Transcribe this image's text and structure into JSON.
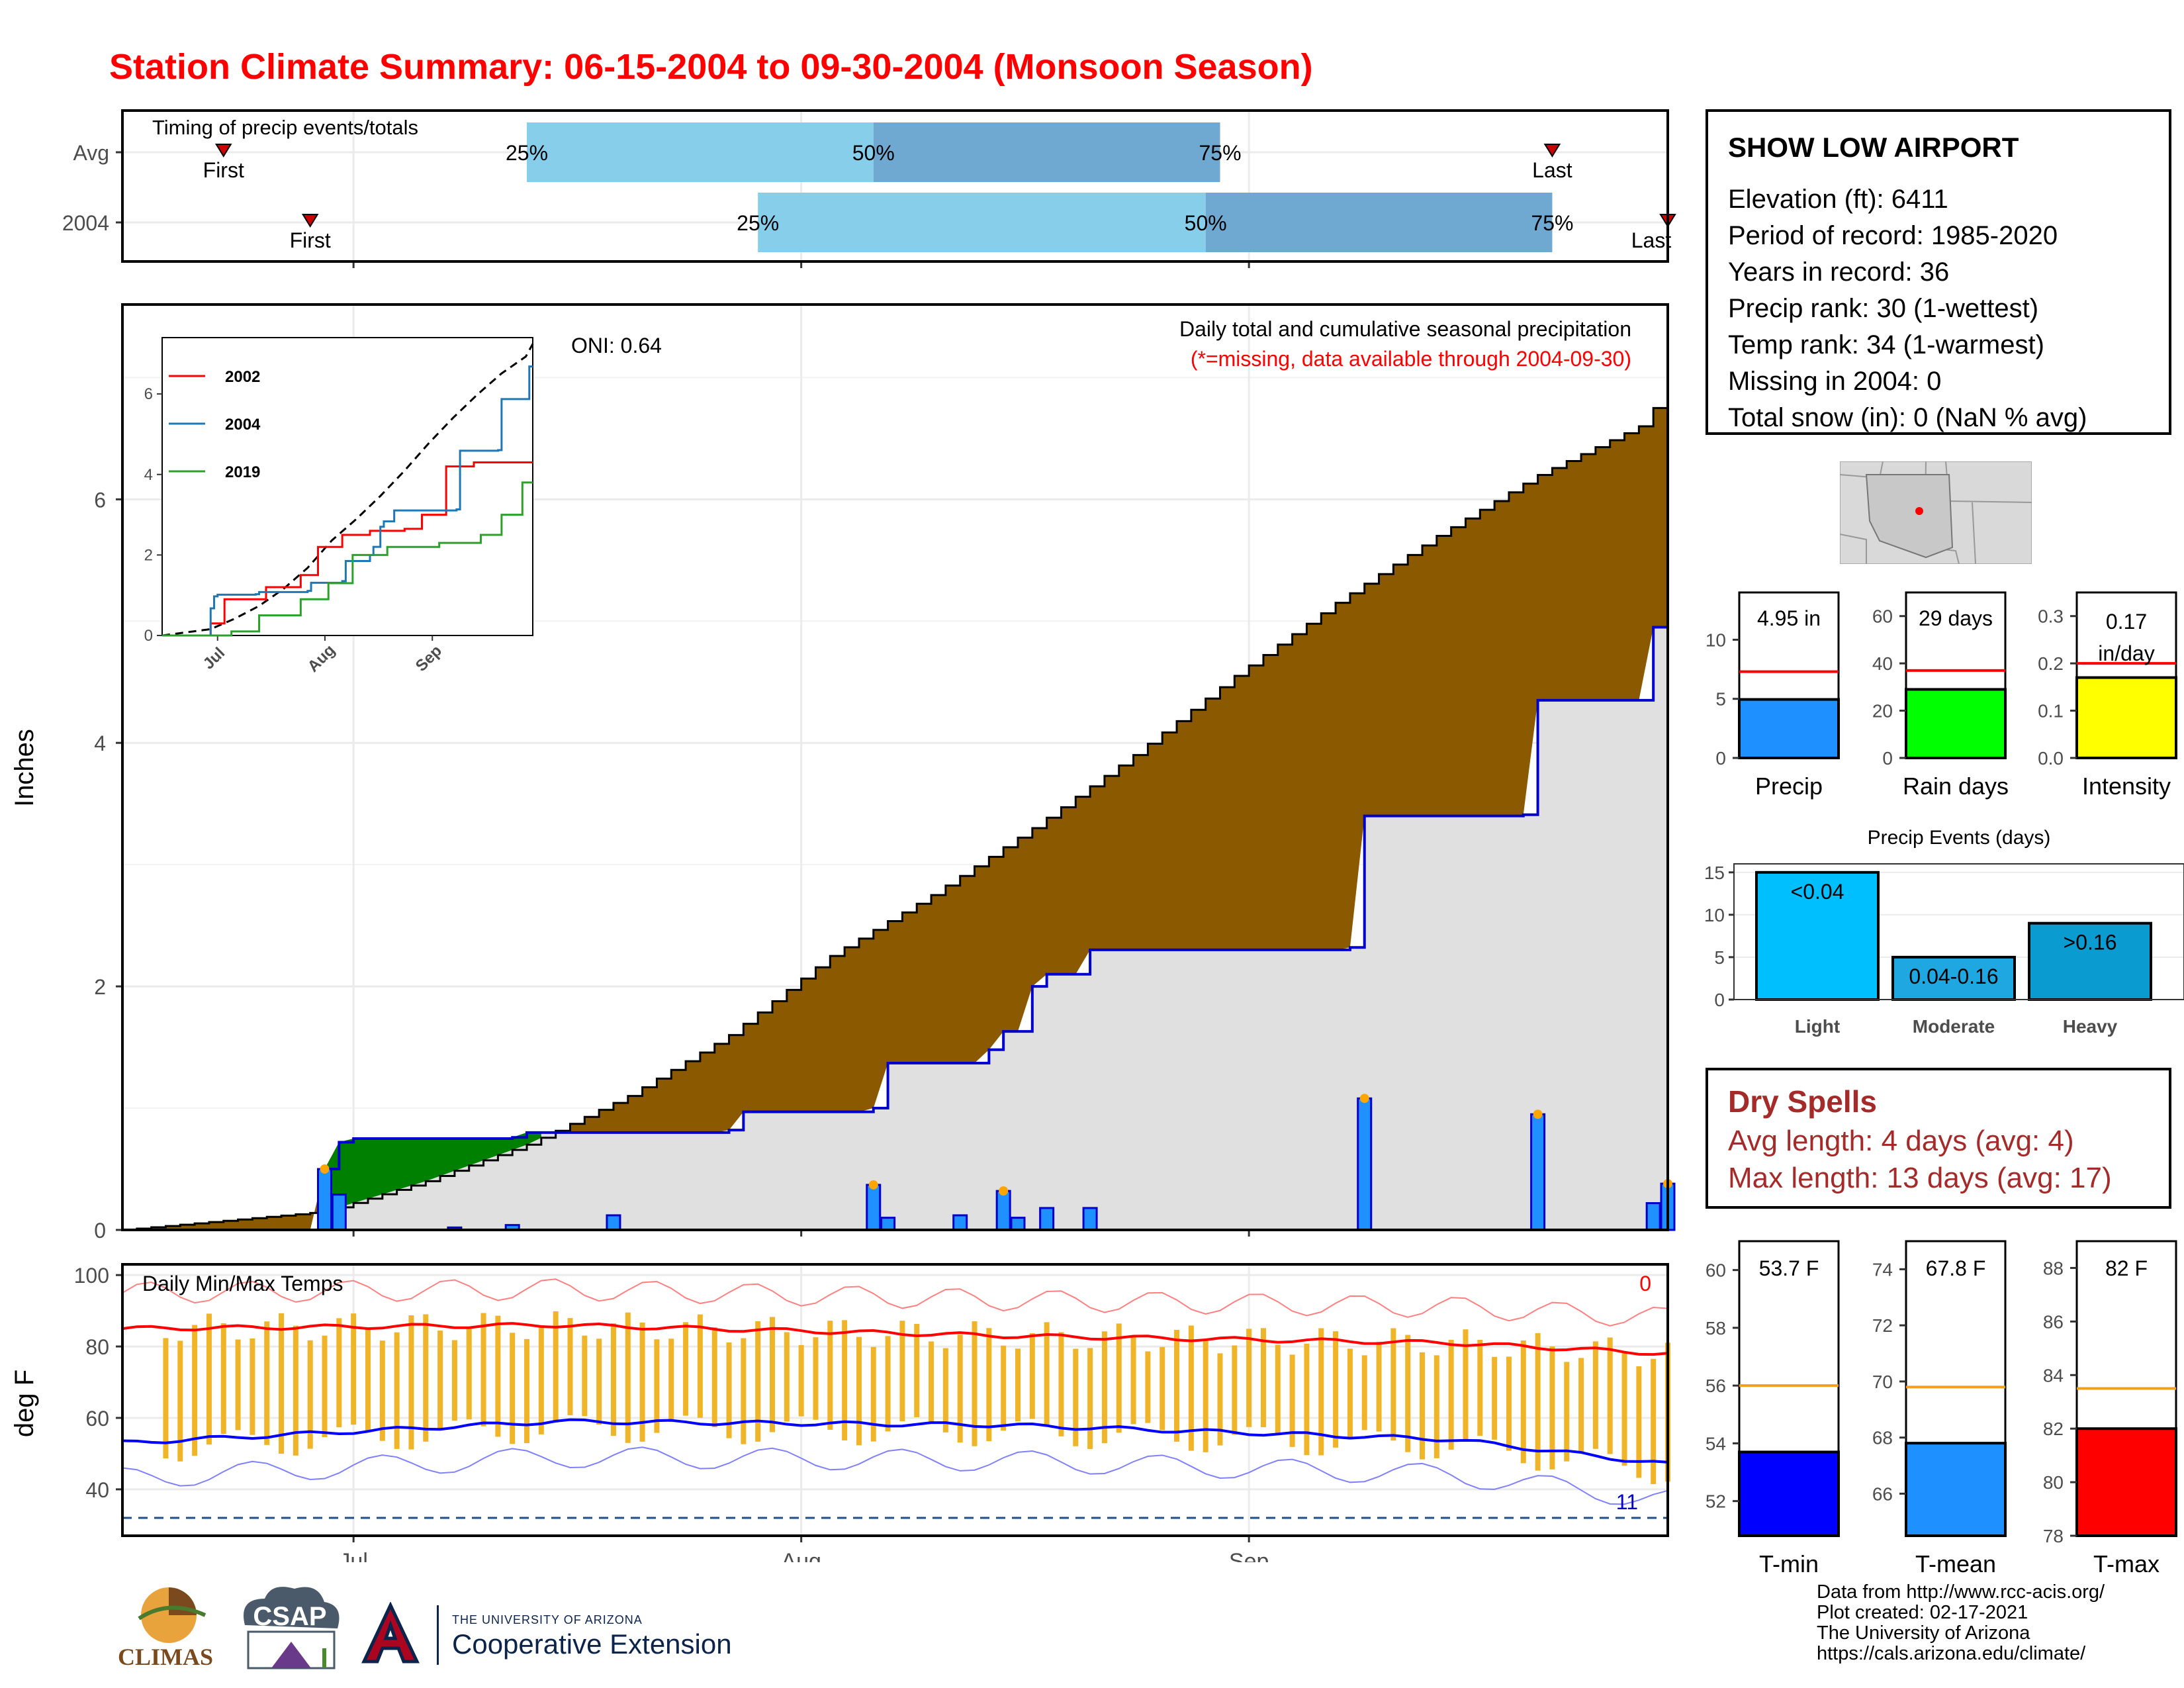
{
  "header": {
    "title": "Station Climate Summary: 06-15-2004 to 09-30-2004 (Monsoon Season)"
  },
  "colors": {
    "title": "#ff0000",
    "cumulative_fill": "#8b5a00",
    "deficit_fill": "#008000",
    "current_line": "#0000cd",
    "daily_bar": "#1e90ff",
    "temp_range_bar": "#f0b429",
    "avg_max": "#ff0000",
    "avg_min": "#0000ff"
  },
  "timing": {
    "label": "Timing of precip events/totals",
    "rows": [
      "Avg",
      "2004"
    ],
    "avg": {
      "first_label": "First",
      "last_label": "Last",
      "q25": "25%",
      "q50": "50%",
      "q75": "75%"
    },
    "y2004": {
      "first_label": "First",
      "last_label": "Last",
      "q25": "25%",
      "q50": "50%",
      "q75": "75%"
    }
  },
  "station": {
    "name": "SHOW LOW AIRPORT",
    "lines": [
      "Elevation (ft): 6411",
      "Period of record: 1985-2020",
      "Years in record: 36",
      "Precip rank: 30 (1-wettest)",
      "Temp rank: 34 (1-warmest)",
      "Missing in 2004: 0",
      "Total snow (in): 0 (NaN % avg)"
    ]
  },
  "precip_panel": {
    "ylabel": "Inches",
    "y_ticks": [
      "0",
      "2",
      "4",
      "6"
    ],
    "oni": "ONI: 0.64",
    "note1": "Daily total and cumulative seasonal precipitation",
    "note2": "(*=missing, data available through 2004-09-30)",
    "x_ticks": [
      "Jul",
      "Aug",
      "Sep"
    ]
  },
  "inset": {
    "legend": [
      "2002",
      "2004",
      "2019"
    ],
    "y_ticks": [
      "0",
      "2",
      "4",
      "6"
    ],
    "x_ticks": [
      "Jul",
      "Aug",
      "Sep"
    ]
  },
  "temp_panel": {
    "ylabel": "deg F",
    "label": "Daily Min/Max Temps",
    "count_top": "0",
    "count_bottom": "11",
    "y_ticks": [
      "40",
      "60",
      "80",
      "100"
    ],
    "x_ticks": [
      "Jul",
      "Aug",
      "Sep"
    ]
  },
  "summary_bars": [
    {
      "name": "Precip",
      "label": "4.95 in",
      "value": 4.95,
      "avg": 7.3,
      "ymax": 14,
      "ticks": [
        "0",
        "5",
        "10"
      ],
      "color": "#1e90ff"
    },
    {
      "name": "Rain days",
      "label": "29 days",
      "value": 29,
      "avg": 37,
      "ymax": 70,
      "ticks": [
        "0",
        "20",
        "40",
        "60"
      ],
      "color": "#00ff00"
    },
    {
      "name": "Intensity",
      "label_l1": "0.17",
      "label_l2": "in/day",
      "value": 0.17,
      "avg": 0.2,
      "ymax": 0.35,
      "ticks": [
        "0.0",
        "0.1",
        "0.2",
        "0.3"
      ],
      "color": "#ffff00"
    }
  ],
  "events": {
    "title": "Precip Events (days)",
    "bars": [
      {
        "name": "Light",
        "label": "<0.04",
        "value": 15
      },
      {
        "name": "Moderate",
        "label": "0.04-0.16",
        "value": 5
      },
      {
        "name": "Heavy",
        "label": ">0.16",
        "value": 9
      }
    ],
    "ticks": [
      "0",
      "5",
      "10",
      "15"
    ]
  },
  "dry_spells": {
    "title": "Dry Spells",
    "avg_line": "Avg length: 4 days (avg: 4)",
    "max_line": "Max length: 13 days (avg: 17)"
  },
  "temp_bars": [
    {
      "name": "T-min",
      "label": "53.7 F",
      "value": 53.7,
      "avg": 56,
      "ymin": 50.8,
      "ymax": 61,
      "ticks": [
        "52",
        "54",
        "56",
        "58",
        "60"
      ],
      "color": "#0000ff"
    },
    {
      "name": "T-mean",
      "label": "67.8 F",
      "value": 67.8,
      "avg": 69.8,
      "ymin": 64.5,
      "ymax": 75,
      "ticks": [
        "66",
        "68",
        "70",
        "72",
        "74"
      ],
      "color": "#1e90ff"
    },
    {
      "name": "T-max",
      "label": "82 F",
      "value": 82,
      "avg": 83.5,
      "ymin": 78,
      "ymax": 89,
      "ticks": [
        "78",
        "80",
        "82",
        "84",
        "86",
        "88"
      ],
      "color": "#ff0000"
    }
  ],
  "logos": {
    "climas": "CLIMAS",
    "csap": "CSAP",
    "ua_small": "THE UNIVERSITY OF ARIZONA",
    "ua_big": "Cooperative Extension"
  },
  "credits": [
    "Data from http://www.rcc-acis.org/",
    "Plot created: 02-17-2021",
    "The University of Arizona",
    "https://cals.arizona.edu/climate/"
  ],
  "chart_data": {
    "type": "area",
    "title": "Station Climate Summary: 06-15-2004 to 09-30-2004 (Monsoon Season)",
    "ylabel": "Inches",
    "x_range": [
      "2004-06-15",
      "2004-09-30"
    ],
    "ylim": [
      0,
      7.6
    ],
    "series": [
      {
        "name": "2004",
        "type": "step",
        "x": [
          "2004-06-15",
          "2004-06-29",
          "2004-06-30",
          "2004-07-01",
          "2004-07-12",
          "2004-07-13",
          "2004-07-27",
          "2004-07-28",
          "2004-08-06",
          "2004-08-07",
          "2004-08-14",
          "2004-08-15",
          "2004-08-17",
          "2004-08-18",
          "2004-08-21",
          "2004-09-08",
          "2004-09-09",
          "2004-09-20",
          "2004-09-21",
          "2004-09-29",
          "2004-09-30"
        ],
        "values": [
          0.0,
          0.5,
          0.72,
          0.75,
          0.76,
          0.8,
          0.82,
          0.97,
          1.0,
          1.37,
          1.48,
          1.63,
          2.0,
          2.1,
          2.3,
          2.32,
          3.4,
          3.41,
          4.35,
          4.95,
          4.95
        ]
      },
      {
        "name": "Avg",
        "x": [
          "2004-06-15",
          "2004-06-29",
          "2004-07-06",
          "2004-07-13",
          "2004-07-20",
          "2004-07-27",
          "2004-08-03",
          "2004-08-10",
          "2004-08-17",
          "2004-08-24",
          "2004-08-31",
          "2004-09-07",
          "2004-09-14",
          "2004-09-21",
          "2004-09-28",
          "2004-09-30"
        ],
        "values": [
          0.0,
          0.15,
          0.4,
          0.7,
          1.1,
          1.6,
          2.25,
          2.75,
          3.3,
          3.9,
          4.55,
          5.15,
          5.7,
          6.2,
          6.6,
          6.9
        ]
      }
    ],
    "daily_precip": {
      "x": [
        "2004-06-29",
        "2004-06-30",
        "2004-07-08",
        "2004-07-12",
        "2004-07-19",
        "2004-08-06",
        "2004-08-07",
        "2004-08-12",
        "2004-08-15",
        "2004-08-16",
        "2004-08-18",
        "2004-08-21",
        "2004-09-09",
        "2004-09-21",
        "2004-09-29",
        "2004-09-30"
      ],
      "values": [
        0.5,
        0.29,
        0.02,
        0.04,
        0.12,
        0.37,
        0.1,
        0.12,
        0.32,
        0.1,
        0.18,
        0.18,
        1.08,
        0.95,
        0.22,
        0.38
      ]
    },
    "temperature": {
      "ylabel": "deg F",
      "ylim": [
        27,
        103
      ],
      "avg_max": {
        "x": [
          "2004-06-15",
          "2004-07-15",
          "2004-08-15",
          "2004-09-15",
          "2004-09-30"
        ],
        "values": [
          85,
          86,
          83,
          81,
          78
        ]
      },
      "avg_min": {
        "x": [
          "2004-06-15",
          "2004-07-15",
          "2004-08-15",
          "2004-09-15",
          "2004-09-30"
        ],
        "values": [
          53,
          59,
          58,
          54,
          47
        ]
      },
      "freeze_line": 32
    },
    "summary": {
      "precip_total": 4.95,
      "rain_days": 29,
      "intensity": 0.17,
      "t_min": 53.7,
      "t_mean": 67.8,
      "t_max": 82
    }
  }
}
